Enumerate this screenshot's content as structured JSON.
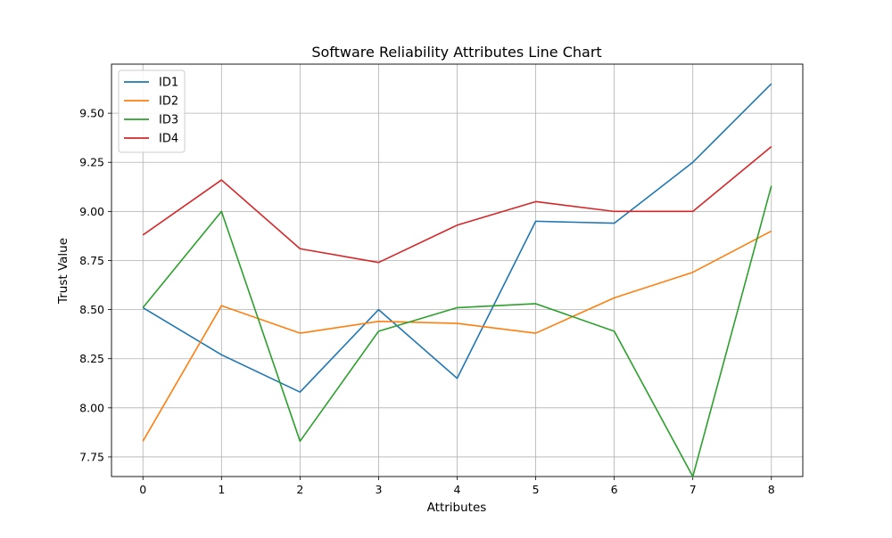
{
  "chart_data": {
    "type": "line",
    "title": "Software Reliability Attributes Line Chart",
    "xlabel": "Attributes",
    "ylabel": "Trust Value",
    "x": [
      0,
      1,
      2,
      3,
      4,
      5,
      6,
      7,
      8
    ],
    "xlim": [
      -0.4,
      8.4
    ],
    "ylim": [
      7.65,
      9.75
    ],
    "yticks": [
      "7.75",
      "8.00",
      "8.25",
      "8.50",
      "8.75",
      "9.00",
      "9.25",
      "9.50"
    ],
    "xticks": [
      "0",
      "1",
      "2",
      "3",
      "4",
      "5",
      "6",
      "7",
      "8"
    ],
    "grid": true,
    "legend_position": "upper-left",
    "series": [
      {
        "name": "ID1",
        "color": "#1f77b4",
        "values": [
          8.51,
          8.27,
          8.08,
          8.5,
          8.15,
          8.95,
          8.94,
          9.25,
          9.65
        ]
      },
      {
        "name": "ID2",
        "color": "#ff7f0e",
        "values": [
          7.83,
          8.52,
          8.38,
          8.44,
          8.43,
          8.38,
          8.56,
          8.69,
          8.9
        ]
      },
      {
        "name": "ID3",
        "color": "#2ca02c",
        "values": [
          8.51,
          9.0,
          7.83,
          8.39,
          8.51,
          8.53,
          8.39,
          7.65,
          9.13
        ]
      },
      {
        "name": "ID4",
        "color": "#d62728",
        "values": [
          8.88,
          9.16,
          8.81,
          8.74,
          8.93,
          9.05,
          9.0,
          9.0,
          9.33
        ]
      }
    ]
  }
}
